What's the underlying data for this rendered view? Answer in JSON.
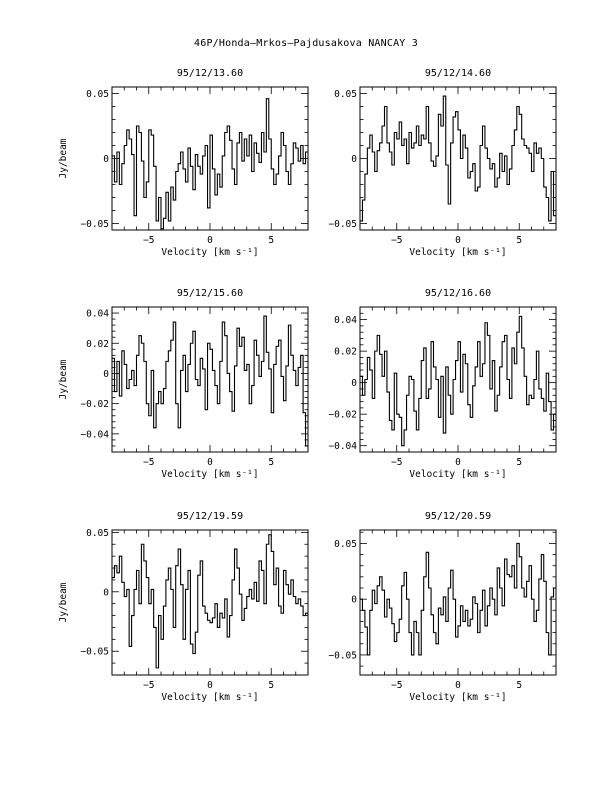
{
  "page": {
    "title": "46P/Honda–Mrkos–Pajdusakova   NANCAY    3"
  },
  "chart_data": [
    {
      "type": "line",
      "title": "95/12/13.60",
      "xlabel": "Velocity [km s⁻¹]",
      "ylabel": "Jy/beam",
      "xlim": [
        -8,
        8
      ],
      "ylim": [
        -0.055,
        0.055
      ],
      "xticks": [
        -5,
        0,
        5
      ],
      "xtick_labels": [
        "−5",
        "0",
        "5"
      ],
      "yticks": [
        -0.05,
        0,
        0.05
      ],
      "ytick_labels": [
        "−0.05",
        "0",
        "0.05"
      ],
      "x": [
        -8.0,
        -7.8,
        -7.6,
        -7.4,
        -7.2,
        -7.0,
        -6.8,
        -6.6,
        -6.4,
        -6.2,
        -6.0,
        -5.8,
        -5.6,
        -5.4,
        -5.2,
        -5.0,
        -4.8,
        -4.6,
        -4.4,
        -4.2,
        -4.0,
        -3.8,
        -3.6,
        -3.4,
        -3.2,
        -3.0,
        -2.8,
        -2.6,
        -2.4,
        -2.2,
        -2.0,
        -1.8,
        -1.6,
        -1.4,
        -1.2,
        -1.0,
        -0.8,
        -0.6,
        -0.4,
        -0.2,
        0.0,
        0.2,
        0.4,
        0.6,
        0.8,
        1.0,
        1.2,
        1.4,
        1.6,
        1.8,
        2.0,
        2.2,
        2.4,
        2.6,
        2.8,
        3.0,
        3.2,
        3.4,
        3.6,
        3.8,
        4.0,
        4.2,
        4.4,
        4.6,
        4.8,
        5.0,
        5.2,
        5.4,
        5.6,
        5.8,
        6.0,
        6.2,
        6.4,
        6.6,
        6.8,
        7.0,
        7.2,
        7.4,
        7.6,
        7.8
      ],
      "y": [
        0.002,
        -0.018,
        0.005,
        -0.02,
        -0.004,
        0.01,
        0.022,
        0.015,
        0.003,
        -0.044,
        0.025,
        0.02,
        -0.002,
        -0.03,
        -0.018,
        0.022,
        0.018,
        -0.006,
        -0.048,
        -0.03,
        -0.054,
        -0.046,
        -0.026,
        -0.048,
        -0.022,
        -0.032,
        -0.01,
        -0.004,
        0.005,
        -0.008,
        -0.018,
        0.008,
        -0.006,
        -0.024,
        0.003,
        -0.006,
        -0.012,
        0.002,
        0.01,
        -0.038,
        0.018,
        -0.008,
        -0.028,
        -0.012,
        -0.022,
        0.002,
        0.02,
        0.025,
        0.014,
        -0.008,
        -0.02,
        0.012,
        0.02,
        -0.002,
        0.015,
        0.002,
        0.018,
        -0.01,
        0.012,
        0.004,
        -0.003,
        0.02,
        0.005,
        0.046,
        0.015,
        -0.008,
        -0.02,
        -0.012,
        0.002,
        0.02,
        0.01,
        -0.01,
        -0.02,
        -0.004,
        0.012,
        0.008,
        -0.002,
        0.01,
        -0.004,
        0.005
      ]
    },
    {
      "type": "line",
      "title": "95/12/14.60",
      "xlabel": "Velocity [km s⁻¹]",
      "ylabel": "",
      "xlim": [
        -8,
        8
      ],
      "ylim": [
        -0.055,
        0.055
      ],
      "xticks": [
        -5,
        0,
        5
      ],
      "xtick_labels": [
        "−5",
        "0",
        "5"
      ],
      "yticks": [
        -0.05,
        0,
        0.05
      ],
      "ytick_labels": [
        "−0.05",
        "0",
        "0.05"
      ],
      "x": [
        -8.0,
        -7.8,
        -7.6,
        -7.4,
        -7.2,
        -7.0,
        -6.8,
        -6.6,
        -6.4,
        -6.2,
        -6.0,
        -5.8,
        -5.6,
        -5.4,
        -5.2,
        -5.0,
        -4.8,
        -4.6,
        -4.4,
        -4.2,
        -4.0,
        -3.8,
        -3.6,
        -3.4,
        -3.2,
        -3.0,
        -2.8,
        -2.6,
        -2.4,
        -2.2,
        -2.0,
        -1.8,
        -1.6,
        -1.4,
        -1.2,
        -1.0,
        -0.8,
        -0.6,
        -0.4,
        -0.2,
        0.0,
        0.2,
        0.4,
        0.6,
        0.8,
        1.0,
        1.2,
        1.4,
        1.6,
        1.8,
        2.0,
        2.2,
        2.4,
        2.6,
        2.8,
        3.0,
        3.2,
        3.4,
        3.6,
        3.8,
        4.0,
        4.2,
        4.4,
        4.6,
        4.8,
        5.0,
        5.2,
        5.4,
        5.6,
        5.8,
        6.0,
        6.2,
        6.4,
        6.6,
        6.8,
        7.0,
        7.2,
        7.4,
        7.6,
        7.8
      ],
      "y": [
        -0.048,
        -0.032,
        -0.012,
        0.008,
        0.018,
        0.005,
        -0.01,
        0.006,
        0.012,
        0.025,
        0.04,
        0.012,
        0.005,
        -0.005,
        0.02,
        0.015,
        0.028,
        0.01,
        0.015,
        -0.004,
        0.02,
        0.008,
        0.012,
        0.025,
        0.01,
        0.018,
        0.015,
        0.04,
        0.012,
        -0.002,
        -0.006,
        0.002,
        0.034,
        0.025,
        0.048,
        -0.005,
        -0.035,
        0.012,
        0.032,
        0.036,
        0.022,
        0.0,
        0.018,
        0.008,
        -0.015,
        -0.01,
        -0.004,
        -0.025,
        -0.022,
        0.01,
        0.025,
        0.008,
        0.0,
        -0.008,
        -0.004,
        -0.022,
        -0.015,
        0.004,
        -0.01,
        0.002,
        -0.02,
        -0.008,
        0.01,
        0.022,
        0.04,
        0.034,
        0.015,
        0.01,
        0.008,
        0.004,
        -0.01,
        0.012,
        0.004,
        0.008,
        0.0,
        -0.022,
        -0.03,
        -0.048,
        -0.01,
        -0.044
      ]
    },
    {
      "type": "line",
      "title": "95/12/15.60",
      "xlabel": "Velocity [km s⁻¹]",
      "ylabel": "Jy/beam",
      "xlim": [
        -8,
        8
      ],
      "ylim": [
        -0.052,
        0.044
      ],
      "xticks": [
        -5,
        0,
        5
      ],
      "xtick_labels": [
        "−5",
        "0",
        "5"
      ],
      "yticks": [
        -0.04,
        -0.02,
        0,
        0.02,
        0.04
      ],
      "ytick_labels": [
        "−0.04",
        "−0.02",
        "0",
        "0.02",
        "0.04"
      ],
      "x": [
        -8.0,
        -7.8,
        -7.6,
        -7.4,
        -7.2,
        -7.0,
        -6.8,
        -6.6,
        -6.4,
        -6.2,
        -6.0,
        -5.8,
        -5.6,
        -5.4,
        -5.2,
        -5.0,
        -4.8,
        -4.6,
        -4.4,
        -4.2,
        -4.0,
        -3.8,
        -3.6,
        -3.4,
        -3.2,
        -3.0,
        -2.8,
        -2.6,
        -2.4,
        -2.2,
        -2.0,
        -1.8,
        -1.6,
        -1.4,
        -1.2,
        -1.0,
        -0.8,
        -0.6,
        -0.4,
        -0.2,
        0.0,
        0.2,
        0.4,
        0.6,
        0.8,
        1.0,
        1.2,
        1.4,
        1.6,
        1.8,
        2.0,
        2.2,
        2.4,
        2.6,
        2.8,
        3.0,
        3.2,
        3.4,
        3.6,
        3.8,
        4.0,
        4.2,
        4.4,
        4.6,
        4.8,
        5.0,
        5.2,
        5.4,
        5.6,
        5.8,
        6.0,
        6.2,
        6.4,
        6.6,
        6.8,
        7.0,
        7.2,
        7.4,
        7.6,
        7.8
      ],
      "y": [
        0.01,
        -0.012,
        0.008,
        -0.015,
        0.015,
        0.006,
        -0.01,
        -0.004,
        0.002,
        -0.008,
        0.012,
        0.025,
        0.02,
        0.008,
        -0.02,
        -0.028,
        0.002,
        -0.036,
        -0.02,
        -0.012,
        -0.02,
        -0.01,
        0.008,
        0.015,
        0.022,
        0.034,
        -0.02,
        -0.036,
        0.002,
        0.012,
        -0.012,
        0.006,
        0.02,
        0.028,
        -0.004,
        -0.008,
        0.01,
        0.003,
        -0.024,
        0.02,
        0.016,
        0.002,
        -0.008,
        -0.02,
        0.008,
        0.034,
        0.025,
        0.0,
        -0.012,
        -0.025,
        0.005,
        0.03,
        0.018,
        0.024,
        0.002,
        0.006,
        -0.02,
        -0.008,
        0.022,
        0.012,
        -0.002,
        0.008,
        0.038,
        0.014,
        0.003,
        -0.026,
        0.006,
        0.018,
        0.022,
        -0.002,
        -0.018,
        0.005,
        0.032,
        0.012,
        0.002,
        -0.008,
        0.004,
        0.012,
        -0.026,
        -0.048
      ]
    },
    {
      "type": "line",
      "title": "95/12/16.60",
      "xlabel": "Velocity [km s⁻¹]",
      "ylabel": "",
      "xlim": [
        -8,
        8
      ],
      "ylim": [
        -0.044,
        0.048
      ],
      "xticks": [
        -5,
        0,
        5
      ],
      "xtick_labels": [
        "−5",
        "0",
        "5"
      ],
      "yticks": [
        -0.04,
        -0.02,
        0,
        0.02,
        0.04
      ],
      "ytick_labels": [
        "−0.04",
        "−0.02",
        "0",
        "0.02",
        "0.04"
      ],
      "x": [
        -8.0,
        -7.8,
        -7.6,
        -7.4,
        -7.2,
        -7.0,
        -6.8,
        -6.6,
        -6.4,
        -6.2,
        -6.0,
        -5.8,
        -5.6,
        -5.4,
        -5.2,
        -5.0,
        -4.8,
        -4.6,
        -4.4,
        -4.2,
        -4.0,
        -3.8,
        -3.6,
        -3.4,
        -3.2,
        -3.0,
        -2.8,
        -2.6,
        -2.4,
        -2.2,
        -2.0,
        -1.8,
        -1.6,
        -1.4,
        -1.2,
        -1.0,
        -0.8,
        -0.6,
        -0.4,
        -0.2,
        0.0,
        0.2,
        0.4,
        0.6,
        0.8,
        1.0,
        1.2,
        1.4,
        1.6,
        1.8,
        2.0,
        2.2,
        2.4,
        2.6,
        2.8,
        3.0,
        3.2,
        3.4,
        3.6,
        3.8,
        4.0,
        4.2,
        4.4,
        4.6,
        4.8,
        5.0,
        5.2,
        5.4,
        5.6,
        5.8,
        6.0,
        6.2,
        6.4,
        6.6,
        6.8,
        7.0,
        7.2,
        7.4,
        7.6,
        7.8
      ],
      "y": [
        0.004,
        -0.008,
        0.002,
        0.016,
        0.008,
        -0.01,
        0.02,
        0.03,
        0.018,
        0.004,
        0.02,
        -0.006,
        -0.024,
        -0.03,
        0.006,
        -0.02,
        -0.022,
        -0.04,
        -0.03,
        -0.008,
        0.004,
        0.002,
        -0.018,
        -0.03,
        -0.01,
        0.014,
        0.022,
        -0.01,
        -0.004,
        0.026,
        0.01,
        0.002,
        -0.022,
        0.004,
        -0.032,
        0.01,
        -0.008,
        -0.02,
        0.002,
        0.014,
        0.026,
        -0.006,
        0.018,
        0.012,
        -0.014,
        -0.022,
        -0.002,
        0.01,
        0.026,
        0.004,
        0.012,
        0.038,
        0.03,
        -0.004,
        0.014,
        -0.018,
        -0.008,
        0.01,
        0.026,
        0.03,
        0.002,
        -0.01,
        0.022,
        0.012,
        0.032,
        0.042,
        0.022,
        0.004,
        -0.014,
        -0.008,
        -0.01,
        0.002,
        0.02,
        -0.004,
        -0.01,
        -0.018,
        0.006,
        -0.012,
        -0.03,
        -0.02
      ]
    },
    {
      "type": "line",
      "title": "95/12/19.59",
      "xlabel": "Velocity [km s⁻¹]",
      "ylabel": "Jy/beam",
      "xlim": [
        -8,
        8
      ],
      "ylim": [
        -0.07,
        0.052
      ],
      "xticks": [
        -5,
        0,
        5
      ],
      "xtick_labels": [
        "−5",
        "0",
        "5"
      ],
      "yticks": [
        -0.05,
        0,
        0.05
      ],
      "ytick_labels": [
        "−0.05",
        "0",
        "0.05"
      ],
      "x": [
        -8.0,
        -7.8,
        -7.6,
        -7.4,
        -7.2,
        -7.0,
        -6.8,
        -6.6,
        -6.4,
        -6.2,
        -6.0,
        -5.8,
        -5.6,
        -5.4,
        -5.2,
        -5.0,
        -4.8,
        -4.6,
        -4.4,
        -4.2,
        -4.0,
        -3.8,
        -3.6,
        -3.4,
        -3.2,
        -3.0,
        -2.8,
        -2.6,
        -2.4,
        -2.2,
        -2.0,
        -1.8,
        -1.6,
        -1.4,
        -1.2,
        -1.0,
        -0.8,
        -0.6,
        -0.4,
        -0.2,
        0.0,
        0.2,
        0.4,
        0.6,
        0.8,
        1.0,
        1.2,
        1.4,
        1.6,
        1.8,
        2.0,
        2.2,
        2.4,
        2.6,
        2.8,
        3.0,
        3.2,
        3.4,
        3.6,
        3.8,
        4.0,
        4.2,
        4.4,
        4.6,
        4.8,
        5.0,
        5.2,
        5.4,
        5.6,
        5.8,
        6.0,
        6.2,
        6.4,
        6.6,
        6.8,
        7.0,
        7.2,
        7.4,
        7.6,
        7.8
      ],
      "y": [
        0.012,
        0.022,
        0.016,
        0.03,
        0.008,
        -0.004,
        0.002,
        -0.046,
        -0.02,
        0.002,
        0.018,
        -0.01,
        0.04,
        0.026,
        0.012,
        -0.01,
        0.002,
        -0.03,
        -0.064,
        -0.02,
        -0.04,
        -0.012,
        0.01,
        0.02,
        0.002,
        -0.03,
        0.022,
        0.036,
        0.006,
        -0.04,
        0.002,
        0.018,
        -0.044,
        -0.052,
        -0.034,
        0.014,
        0.026,
        -0.012,
        -0.018,
        -0.024,
        -0.026,
        -0.022,
        -0.01,
        -0.03,
        -0.018,
        -0.022,
        -0.006,
        -0.038,
        -0.02,
        0.01,
        0.036,
        0.02,
        -0.002,
        -0.024,
        -0.014,
        -0.004,
        0.002,
        -0.006,
        0.008,
        -0.008,
        0.026,
        0.018,
        -0.01,
        0.04,
        0.048,
        0.034,
        0.006,
        0.02,
        -0.012,
        -0.018,
        0.018,
        0.006,
        -0.002,
        0.01,
        -0.004,
        -0.01,
        -0.006,
        -0.012,
        -0.02,
        -0.018
      ]
    },
    {
      "type": "line",
      "title": "95/12/20.59",
      "xlabel": "Velocity [km s⁻¹]",
      "ylabel": "",
      "xlim": [
        -8,
        8
      ],
      "ylim": [
        -0.068,
        0.062
      ],
      "xticks": [
        -5,
        0,
        5
      ],
      "xtick_labels": [
        "−5",
        "0",
        "5"
      ],
      "yticks": [
        -0.05,
        0,
        0.05
      ],
      "ytick_labels": [
        "−0.05",
        "0",
        "0.05"
      ],
      "x": [
        -8.0,
        -7.8,
        -7.6,
        -7.4,
        -7.2,
        -7.0,
        -6.8,
        -6.6,
        -6.4,
        -6.2,
        -6.0,
        -5.8,
        -5.6,
        -5.4,
        -5.2,
        -5.0,
        -4.8,
        -4.6,
        -4.4,
        -4.2,
        -4.0,
        -3.8,
        -3.6,
        -3.4,
        -3.2,
        -3.0,
        -2.8,
        -2.6,
        -2.4,
        -2.2,
        -2.0,
        -1.8,
        -1.6,
        -1.4,
        -1.2,
        -1.0,
        -0.8,
        -0.6,
        -0.4,
        -0.2,
        0.0,
        0.2,
        0.4,
        0.6,
        0.8,
        1.0,
        1.2,
        1.4,
        1.6,
        1.8,
        2.0,
        2.2,
        2.4,
        2.6,
        2.8,
        3.0,
        3.2,
        3.4,
        3.6,
        3.8,
        4.0,
        4.2,
        4.4,
        4.6,
        4.8,
        5.0,
        5.2,
        5.4,
        5.6,
        5.8,
        6.0,
        6.2,
        6.4,
        6.6,
        6.8,
        7.0,
        7.2,
        7.4,
        7.6,
        7.8
      ],
      "y": [
        0.0,
        -0.01,
        -0.025,
        -0.05,
        -0.01,
        0.008,
        -0.004,
        0.012,
        0.02,
        0.008,
        -0.016,
        0.0,
        -0.008,
        -0.022,
        -0.038,
        -0.03,
        -0.018,
        0.012,
        0.024,
        0.0,
        -0.03,
        -0.05,
        -0.02,
        -0.03,
        -0.05,
        -0.01,
        0.02,
        0.042,
        0.01,
        -0.014,
        -0.03,
        -0.04,
        -0.008,
        -0.014,
        0.002,
        -0.02,
        0.01,
        0.026,
        0.0,
        -0.034,
        -0.024,
        -0.006,
        -0.02,
        -0.01,
        -0.024,
        -0.018,
        0.002,
        -0.004,
        -0.03,
        -0.01,
        0.008,
        -0.024,
        -0.006,
        0.01,
        0.0,
        -0.014,
        0.028,
        0.01,
        -0.006,
        0.036,
        0.022,
        0.02,
        0.03,
        0.01,
        0.05,
        0.038,
        0.01,
        0.002,
        0.016,
        0.03,
        0.0,
        -0.02,
        -0.01,
        0.018,
        0.04,
        0.016,
        -0.03,
        -0.05,
        0.002,
        0.01
      ]
    }
  ]
}
